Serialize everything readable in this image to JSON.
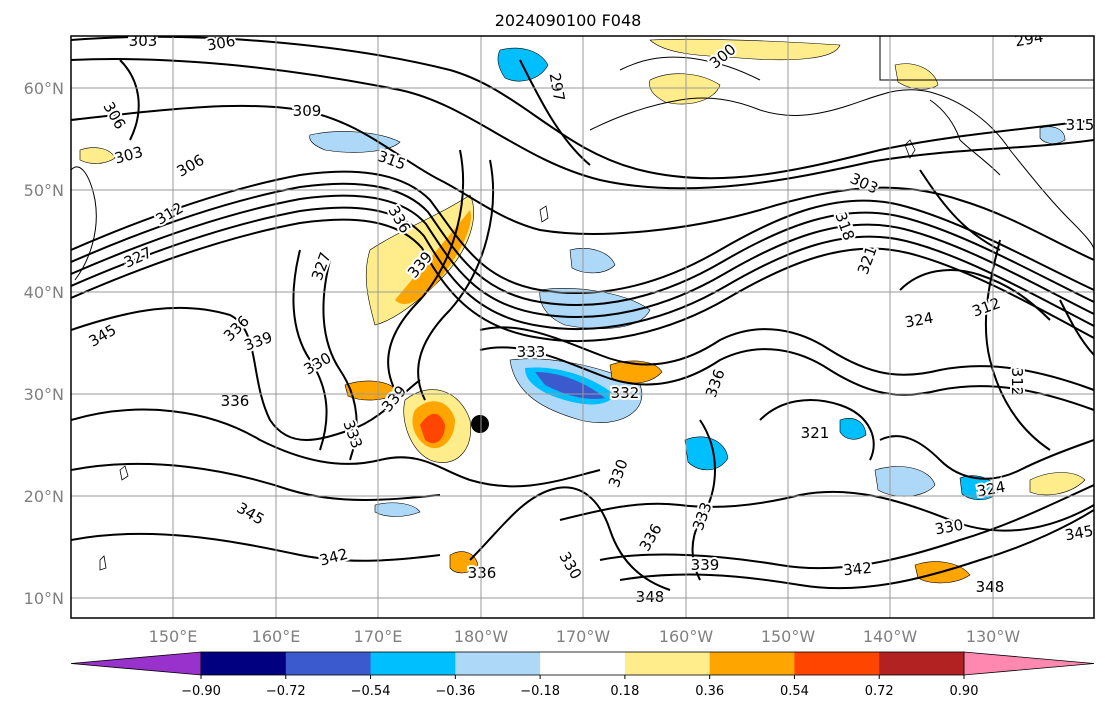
{
  "title": "2024090100 F048",
  "map": {
    "lat_labels": [
      "60°N",
      "50°N",
      "40°N",
      "30°N",
      "20°N",
      "10°N"
    ],
    "lon_labels": [
      "150°E",
      "160°E",
      "170°E",
      "180°W",
      "170°W",
      "160°W",
      "150°W",
      "140°W",
      "130°W"
    ],
    "contour_labels": [
      "303",
      "306",
      "306",
      "303",
      "306",
      "309",
      "315",
      "312",
      "327",
      "336",
      "327",
      "339",
      "345",
      "336",
      "339",
      "330",
      "336",
      "333",
      "339",
      "333",
      "332",
      "336",
      "330",
      "321",
      "336",
      "333",
      "339",
      "342",
      "348",
      "330",
      "345",
      "324",
      "312",
      "312",
      "324",
      "321",
      "318",
      "303",
      "300",
      "297",
      "345",
      "342",
      "348",
      "336",
      "330",
      "294",
      "297",
      "315"
    ],
    "storm_center_marker": "filled-circle"
  },
  "colorbar": {
    "ticks": [
      "−0.90",
      "−0.72",
      "−0.54",
      "−0.36",
      "−0.18",
      "0.18",
      "0.36",
      "0.54",
      "0.72",
      "0.90"
    ],
    "colors": [
      "#9932cc",
      "#000080",
      "#3a5acd",
      "#00bfff",
      "#add8f7",
      "#ffffff",
      "#ffec8a",
      "#ffa500",
      "#ff4500",
      "#b22222",
      "#ff88b0"
    ]
  }
}
